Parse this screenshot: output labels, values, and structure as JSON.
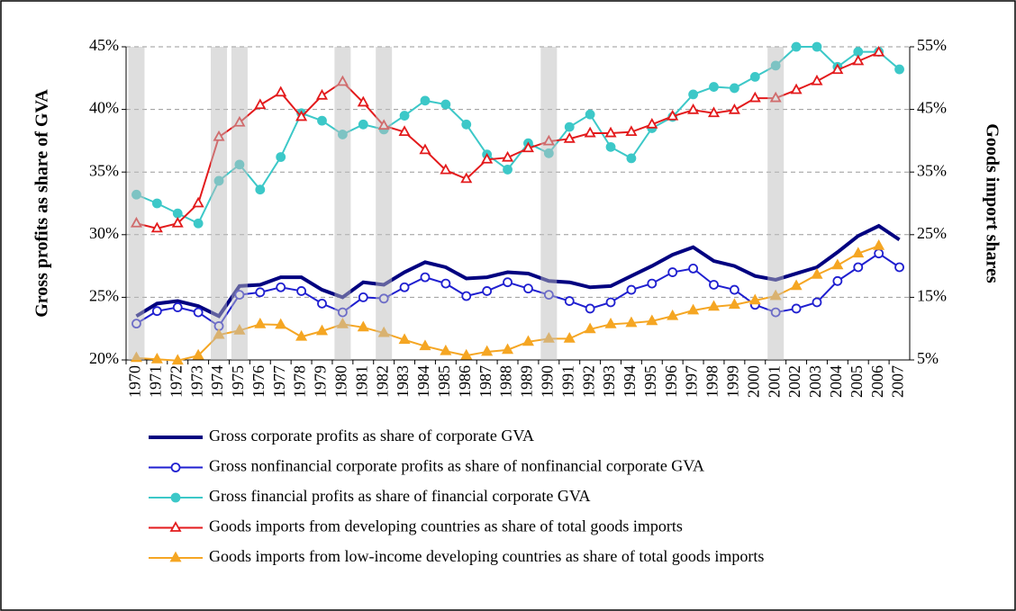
{
  "chart_data": {
    "type": "line",
    "ylabel": "Gross profits as share of GVA",
    "y2label": "Goods import shares",
    "categories": [
      "1970",
      "1971",
      "1972",
      "1973",
      "1974",
      "1975",
      "1976",
      "1977",
      "1978",
      "1979",
      "1980",
      "1981",
      "1982",
      "1983",
      "1984",
      "1985",
      "1986",
      "1987",
      "1988",
      "1989",
      "1990",
      "1991",
      "1992",
      "1993",
      "1994",
      "1995",
      "1996",
      "1997",
      "1998",
      "1999",
      "2000",
      "2001",
      "2002",
      "2003",
      "2004",
      "2005",
      "2006",
      "2007"
    ],
    "shaded_categories": [
      "1970",
      "1974",
      "1975",
      "1980",
      "1982",
      "1990",
      "2001"
    ],
    "ylim": [
      20,
      45
    ],
    "yticks": [
      {
        "value": 20,
        "label": "20%"
      },
      {
        "value": 25,
        "label": "25%"
      },
      {
        "value": 30,
        "label": "30%"
      },
      {
        "value": 35,
        "label": "35%"
      },
      {
        "value": 40,
        "label": "40%"
      },
      {
        "value": 45,
        "label": "45%"
      }
    ],
    "y2lim": [
      5,
      55
    ],
    "y2ticks": [
      {
        "value": 5,
        "label": "5%"
      },
      {
        "value": 15,
        "label": "15%"
      },
      {
        "value": 25,
        "label": "25%"
      },
      {
        "value": 35,
        "label": "35%"
      },
      {
        "value": 45,
        "label": "45%"
      },
      {
        "value": 55,
        "label": "55%"
      }
    ],
    "grid": true,
    "legend": "bottom",
    "series": [
      {
        "name": "Gross corporate profits as share of corporate GVA",
        "color": "#000080",
        "marker": "none",
        "values": [
          23.5,
          24.5,
          24.7,
          24.3,
          23.5,
          25.9,
          26.0,
          26.6,
          26.6,
          25.6,
          25.0,
          26.2,
          26.0,
          27.0,
          27.8,
          27.4,
          26.5,
          26.6,
          27.0,
          26.9,
          26.3,
          26.2,
          25.8,
          25.9,
          26.7,
          27.5,
          28.4,
          29.0,
          27.9,
          27.5,
          26.7,
          26.4,
          26.9,
          27.4,
          28.6,
          29.9,
          30.7,
          29.6
        ]
      },
      {
        "name": "Gross nonfinancial corporate profits as share of nonfinancial corporate GVA",
        "color": "#1f1fd0",
        "marker": "circle-open",
        "values": [
          22.9,
          23.9,
          24.2,
          23.8,
          22.7,
          25.2,
          25.4,
          25.8,
          25.5,
          24.5,
          23.8,
          25.0,
          24.9,
          25.8,
          26.6,
          26.1,
          25.1,
          25.5,
          26.2,
          25.7,
          25.2,
          24.7,
          24.1,
          24.6,
          25.6,
          26.1,
          27.0,
          27.3,
          26.0,
          25.6,
          24.4,
          23.8,
          24.1,
          24.6,
          26.3,
          27.4,
          28.5,
          27.4
        ]
      },
      {
        "name": "Gross financial profits as share of financial corporate GVA",
        "color": "#3cc8c8",
        "marker": "circle",
        "values": [
          33.2,
          32.5,
          31.7,
          30.9,
          34.3,
          35.6,
          33.6,
          36.2,
          39.7,
          39.1,
          38.0,
          38.8,
          38.4,
          39.5,
          40.7,
          40.4,
          38.8,
          36.4,
          35.2,
          37.3,
          36.5,
          38.6,
          39.6,
          37.0,
          36.1,
          38.5,
          39.4,
          41.2,
          41.8,
          41.7,
          42.6,
          43.5,
          45.0,
          45.0,
          43.4,
          44.6,
          44.6,
          43.2
        ]
      },
      {
        "name": "Goods imports from developing countries as share of total goods imports",
        "color": "#e31a1c",
        "marker": "triangle-open",
        "axis": "y2",
        "values": [
          26.8,
          26.0,
          26.8,
          30.0,
          40.6,
          42.9,
          45.7,
          47.7,
          43.8,
          47.2,
          49.4,
          46.1,
          42.4,
          41.4,
          38.5,
          35.3,
          33.9,
          37.0,
          37.3,
          38.8,
          39.9,
          40.3,
          41.2,
          41.2,
          41.4,
          42.6,
          43.9,
          44.9,
          44.4,
          44.9,
          46.8,
          46.8,
          48.1,
          49.5,
          51.3,
          52.7,
          54.1,
          null
        ]
      },
      {
        "name": "Goods imports from low-income developing countries as share of total goods imports",
        "color": "#f5a623",
        "marker": "triangle",
        "axis": "y2",
        "values": [
          5.3,
          5.1,
          4.9,
          5.7,
          9.0,
          9.7,
          10.7,
          10.6,
          8.7,
          9.6,
          10.7,
          10.2,
          9.3,
          8.2,
          7.2,
          6.4,
          5.7,
          6.3,
          6.6,
          7.9,
          8.4,
          8.4,
          9.9,
          10.7,
          10.9,
          11.2,
          12.0,
          12.9,
          13.5,
          13.8,
          14.5,
          15.2,
          16.8,
          18.6,
          20.1,
          22.0,
          23.2,
          null
        ]
      }
    ]
  }
}
